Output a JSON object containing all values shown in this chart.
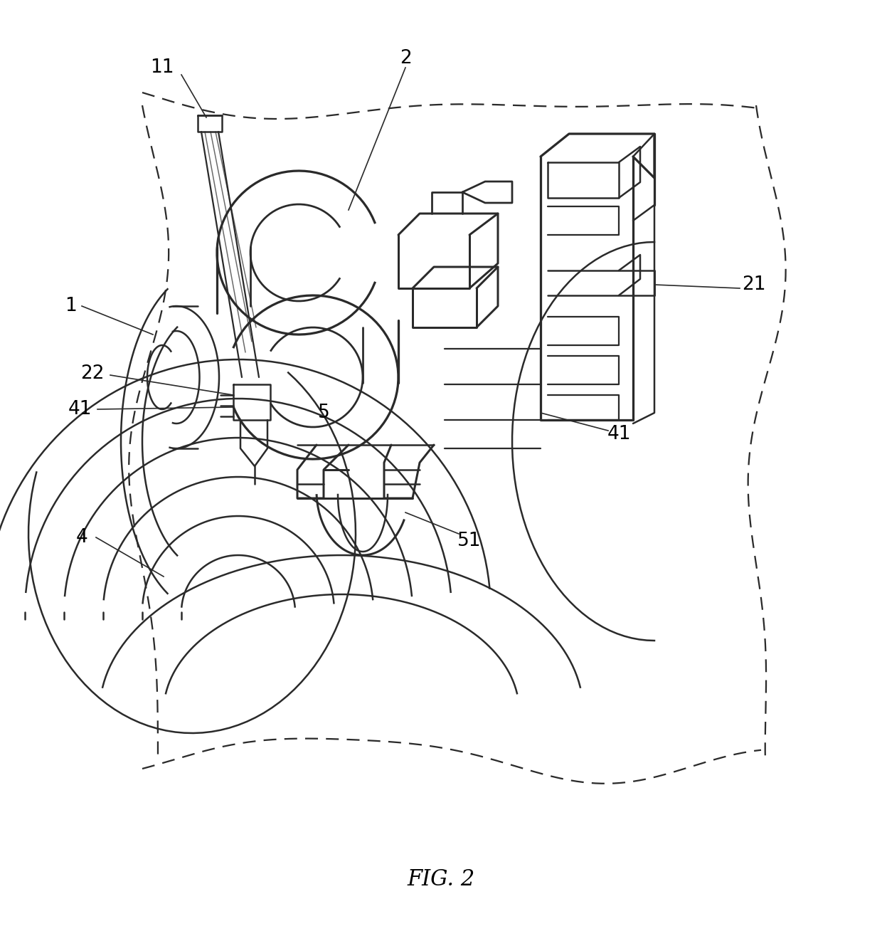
{
  "background_color": "#ffffff",
  "line_color": "#2a2a2a",
  "line_width": 1.8,
  "fig_label": "FIG. 2",
  "fig_label_fontsize": 22,
  "label_fontsize": 19
}
